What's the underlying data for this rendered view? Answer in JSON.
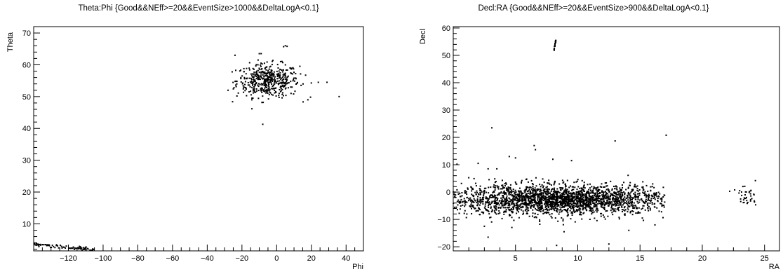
{
  "chart_data": [
    {
      "type": "scatter",
      "title": "Theta:Phi {Good&&NEff>=20&&EventSize>1000&&DeltaLogA<0.1}",
      "xlabel": "Phi",
      "ylabel": "Theta",
      "xlim": [
        -140,
        50
      ],
      "ylim": [
        1.5,
        72
      ],
      "xticks": [
        -120,
        -100,
        -80,
        -60,
        -40,
        -20,
        0,
        20,
        40
      ],
      "yticks": [
        10,
        20,
        30,
        40,
        50,
        60,
        70
      ],
      "grid": false,
      "clusters": [
        {
          "name": "",
          "cx": -5,
          "cy": 55,
          "sx": 9,
          "sy": 2.6,
          "n": 480,
          "xmin": -27,
          "xmax": 20
        },
        {
          "name": "",
          "line_from": [
            -140,
            3.6
          ],
          "line_to": [
            -105,
            1.8
          ],
          "n": 90
        }
      ],
      "outliers": [
        {
          "x": -24,
          "y": 63
        },
        {
          "x": -10,
          "y": 63.5
        },
        {
          "x": 4,
          "y": 65.7
        },
        {
          "x": 5,
          "y": 66
        },
        {
          "x": 6,
          "y": 65.8
        },
        {
          "x": 36,
          "y": 50
        },
        {
          "x": 29,
          "y": 54.5
        },
        {
          "x": 24,
          "y": 54.5
        },
        {
          "x": -8,
          "y": 41.3
        },
        {
          "x": -28,
          "y": 52
        },
        {
          "x": 18,
          "y": 49
        }
      ]
    },
    {
      "type": "scatter",
      "title": "Decl:RA {Good&&NEff>=20&&EventSize>900&&DeltaLogA<0.1}",
      "xlabel": "RA",
      "ylabel": "Decl",
      "xlim": [
        0,
        26.2
      ],
      "ylim": [
        -21.5,
        60.5
      ],
      "xticks": [
        5,
        10,
        15,
        20,
        25
      ],
      "yticks": [
        -20,
        -10,
        0,
        10,
        20,
        30,
        40,
        50,
        60
      ],
      "grid": false,
      "clusters": [
        {
          "name": "",
          "cx": 8.5,
          "cy": -2.8,
          "sx": 4.6,
          "sy": 2.7,
          "n": 2400,
          "xmin": 0,
          "xmax": 17
        },
        {
          "name": "",
          "cx": 23.6,
          "cy": -1.8,
          "sx": 0.45,
          "sy": 2.2,
          "n": 35,
          "xmin": 22.8,
          "xmax": 24.3
        },
        {
          "name": "",
          "line_from": [
            8.1,
            52.3
          ],
          "line_to": [
            8.25,
            55.6
          ],
          "n": 18
        }
      ],
      "outliers": [
        {
          "x": 3.1,
          "y": 23.5
        },
        {
          "x": 17.1,
          "y": 20.8
        },
        {
          "x": 13.0,
          "y": 18.7
        },
        {
          "x": 6.5,
          "y": 17
        },
        {
          "x": 6.6,
          "y": 15.5
        },
        {
          "x": 4.5,
          "y": 13
        },
        {
          "x": 5,
          "y": 12.5
        },
        {
          "x": 8,
          "y": 12
        },
        {
          "x": 9.5,
          "y": 11.5
        },
        {
          "x": 2,
          "y": 10.5
        },
        {
          "x": 0.3,
          "y": 10.2
        },
        {
          "x": 2.8,
          "y": 8.5
        },
        {
          "x": 3.5,
          "y": 8.5
        },
        {
          "x": 2.5,
          "y": -12.5
        },
        {
          "x": 2.8,
          "y": -16.5
        },
        {
          "x": 8.3,
          "y": -19.5
        },
        {
          "x": 12.5,
          "y": -19
        },
        {
          "x": 14.1,
          "y": -14
        },
        {
          "x": 8.9,
          "y": -14.5
        },
        {
          "x": 16.2,
          "y": -12
        },
        {
          "x": 22.2,
          "y": 0.3
        },
        {
          "x": 22.6,
          "y": 0.8
        },
        {
          "x": 23.0,
          "y": 0.5
        }
      ]
    }
  ]
}
